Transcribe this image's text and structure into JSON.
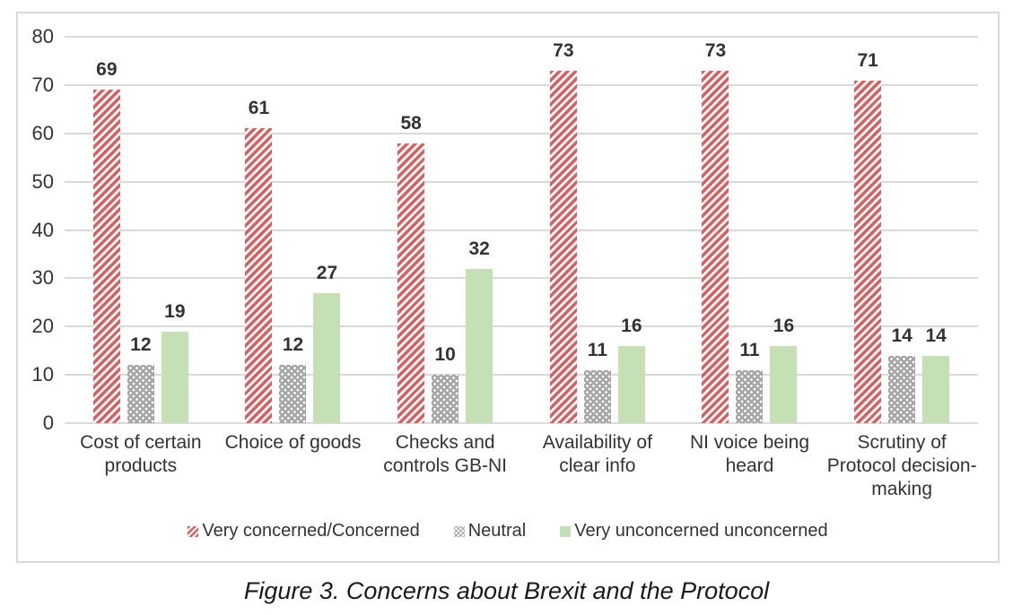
{
  "chart_data": {
    "type": "bar",
    "title": "",
    "categories": [
      "Cost of certain products",
      "Choice of goods",
      "Checks and controls GB-NI",
      "Availability of clear info",
      "NI voice being heard",
      "Scrutiny of Protocol decision-making"
    ],
    "series": [
      {
        "name": "Very concerned/Concerned",
        "pattern": "stripes",
        "color": "#dc5f5e",
        "values": [
          69,
          61,
          58,
          73,
          73,
          71
        ]
      },
      {
        "name": "Neutral",
        "pattern": "dots",
        "color": "#a6a6a6",
        "values": [
          12,
          12,
          10,
          11,
          11,
          14
        ]
      },
      {
        "name": "Very unconcerned unconcerned",
        "pattern": "solid",
        "color": "#c5e0b4",
        "values": [
          19,
          27,
          32,
          16,
          16,
          14
        ]
      }
    ],
    "ylim": [
      0,
      80
    ],
    "yticks": [
      0,
      10,
      20,
      30,
      40,
      50,
      60,
      70,
      80
    ],
    "grid": true,
    "legend_position": "bottom",
    "data_labels": true
  },
  "caption": "Figure 3. Concerns about Brexit and the Protocol",
  "colors": {
    "gridline": "#d9d9d9",
    "border": "#d9d9d9",
    "text": "#333333",
    "background": "#ffffff"
  }
}
